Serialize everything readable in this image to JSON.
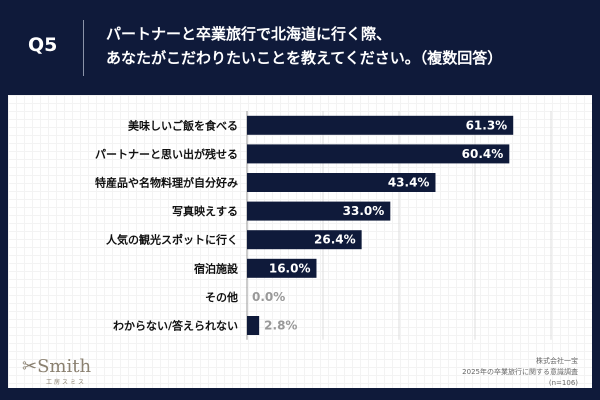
{
  "header": {
    "q_number": "Q5",
    "title_line1": "パートナーと卒業旅行で北海道に行く際、",
    "title_line2": "あなたがこだわりたいことを教えてください。（複数回答）"
  },
  "chart_data": {
    "type": "bar",
    "orientation": "horizontal",
    "categories": [
      "美味しいご飯を食べる",
      "パートナーと思い出が残せる",
      "特産品や名物料理が自分好み",
      "写真映えする",
      "人気の観光スポットに行く",
      "宿泊施設",
      "その他",
      "わからない/答えられない"
    ],
    "values": [
      61.3,
      60.4,
      43.4,
      33.0,
      26.4,
      16.0,
      0.0,
      2.8
    ],
    "data_labels": [
      "61.3%",
      "60.4%",
      "43.4%",
      "33.0%",
      "26.4%",
      "16.0%",
      "0.0%",
      "2.8%"
    ],
    "xlim": [
      0,
      70
    ],
    "grid": true,
    "bar_color": "#0f1a3a"
  },
  "footer": {
    "logo_text": "Smith",
    "logo_sub": "工房スミス",
    "source_line1": "株式会社一宝",
    "source_line2": "2025年の卒業旅行に関する意識調査",
    "source_line3": "(n=106)"
  }
}
